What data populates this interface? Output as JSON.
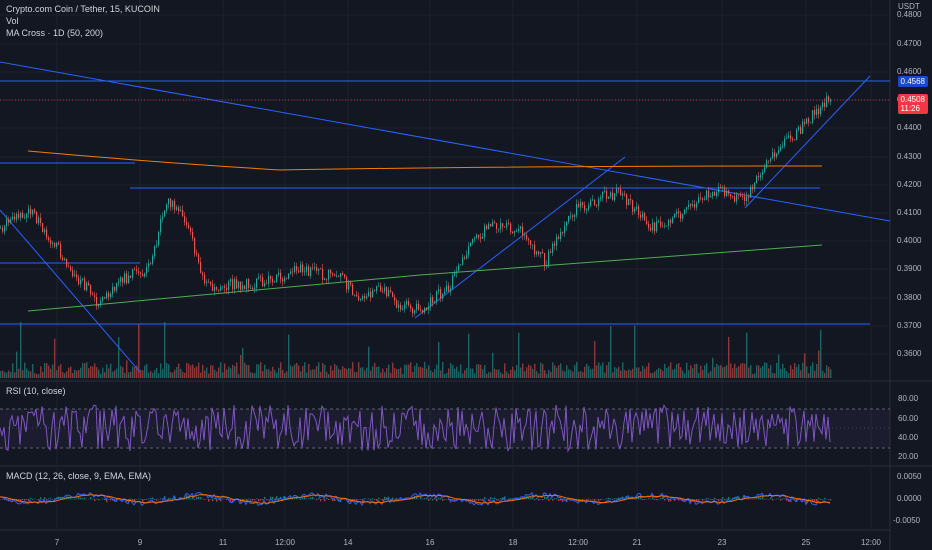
{
  "header": {
    "symbol_line": "Crypto.com Coin / Tether, 15, KUCOIN",
    "vol_label": "Vol",
    "ma_label": "MA Cross · 1D (50, 200)",
    "currency": "USDT"
  },
  "price_axis": {
    "ticks": [
      "0.4800",
      "0.4700",
      "0.4600",
      "0.4500",
      "0.4400",
      "0.4300",
      "0.4200",
      "0.4100",
      "0.4000",
      "0.3900",
      "0.3800",
      "0.3700",
      "0.3600"
    ],
    "badge_blue": "0.4568",
    "badge_red_price": "0.4508",
    "badge_red_time": "11:26"
  },
  "rsi": {
    "label": "RSI (10, close)",
    "ticks": [
      "80.00",
      "60.00",
      "40.00",
      "20.00"
    ],
    "upper_band": 70,
    "lower_band": 30
  },
  "macd": {
    "label": "MACD (12, 26, close, 9, EMA, EMA)",
    "ticks": [
      "0.0050",
      "0.0000",
      "-0.0050"
    ]
  },
  "time_axis": [
    "7",
    "9",
    "11",
    "12:00",
    "14",
    "16",
    "18",
    "12:00",
    "21",
    "23",
    "25",
    "12:00"
  ],
  "colors": {
    "background": "#131722",
    "up": "#26a69a",
    "down": "#ef5350",
    "trendline": "#2962ff",
    "ma_orange": "#f57c00",
    "ma_green": "#4caf50",
    "rsi_line": "#7e57c2",
    "macd_line": "#2962ff",
    "signal_line": "#ff6d00",
    "badge_blue": "#1848cc",
    "badge_red": "#f23645"
  }
}
